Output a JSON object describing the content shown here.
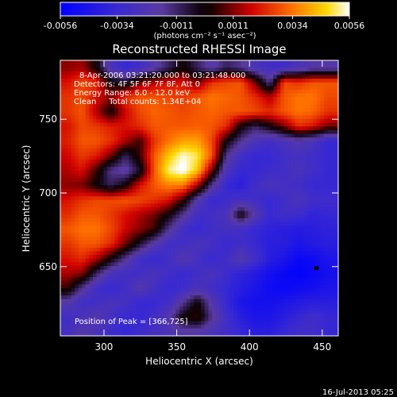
{
  "colorbar": {
    "ticks": [
      -0.0056,
      -0.0034,
      -0.0011,
      0.0011,
      0.0034,
      0.0056
    ],
    "tick_labels": [
      "-0.0056",
      "-0.0034",
      "-0.0011",
      "0.0011",
      "0.0034",
      "0.0056"
    ],
    "units": "(photons cm⁻² s⁻¹ asec⁻²)"
  },
  "annotations": {
    "time_range": "8-Apr-2006 03:21:20.000 to 03:21:48.000",
    "detectors": "Detectors: 4F 5F 6F 7F 8F, Att 0",
    "energy": "Energy Range: 6.0 - 12.0 keV",
    "clean": "Clean     Total counts: 1.34E+04",
    "peak": "Position of Peak = [366,725]"
  },
  "footer": {
    "date": "16-Jul-2013 05:25"
  },
  "chart_data": {
    "type": "heatmap",
    "title": "Reconstructed RHESSI Image",
    "xlabel": "Heliocentric X (arcsec)",
    "ylabel": "Heliocentric Y (arcsec)",
    "xlim": [
      270,
      461
    ],
    "ylim": [
      603,
      790
    ],
    "xticks": [
      300,
      350,
      400,
      450
    ],
    "yticks": [
      650,
      700,
      750
    ],
    "clim": [
      -0.0056,
      0.0056
    ],
    "colormap": "blue-purple-black-red-orange-yellow-white",
    "peak": {
      "x": 366,
      "y": 725
    },
    "marker": {
      "x": 446,
      "y": 649
    },
    "grid_x": [
      275,
      285,
      295,
      305,
      315,
      325,
      335,
      345,
      355,
      365,
      375,
      385,
      395,
      405,
      415,
      425,
      435,
      445,
      455
    ],
    "grid_y": [
      785,
      775,
      765,
      755,
      745,
      735,
      725,
      715,
      705,
      695,
      685,
      675,
      665,
      655,
      645,
      635,
      625,
      615,
      605
    ],
    "values": [
      [
        0.0012,
        0.0014,
        0.0,
        -0.0025,
        -0.0035,
        -0.003,
        -0.002,
        -0.001,
        0.0,
        -0.001,
        -0.002,
        -0.001,
        -0.0015,
        -0.0025,
        -0.003,
        -0.003,
        -0.0025,
        -0.002,
        -0.002
      ],
      [
        0.002,
        0.0028,
        0.0024,
        0.0,
        -0.0005,
        0.001,
        0.0015,
        0.002,
        0.002,
        0.001,
        0.0025,
        0.0028,
        0.003,
        0.001,
        -0.0015,
        0.0028,
        0.0025,
        0.003,
        0.003
      ],
      [
        0.0025,
        0.0028,
        0.002,
        0.0012,
        0.0025,
        0.003,
        0.003,
        0.0028,
        0.0026,
        0.003,
        0.0034,
        0.0032,
        0.003,
        0.0024,
        0.0015,
        0.003,
        0.0034,
        0.0034,
        0.0028
      ],
      [
        0.0025,
        0.003,
        0.0015,
        0.0,
        0.0018,
        0.0028,
        0.0032,
        0.003,
        0.0028,
        0.003,
        0.0032,
        0.003,
        0.003,
        0.0028,
        0.0024,
        0.003,
        0.0034,
        0.0032,
        0.0025
      ],
      [
        0.002,
        0.0028,
        0.0026,
        0.0022,
        0.002,
        0.0024,
        0.003,
        0.003,
        0.003,
        0.0031,
        0.003,
        0.0024,
        0.0,
        -0.001,
        0.0,
        0.001,
        0.0024,
        0.002,
        0.001
      ],
      [
        0.0022,
        0.003,
        0.003,
        0.0025,
        0.0015,
        0.0005,
        0.0025,
        0.0034,
        0.004,
        0.004,
        0.0028,
        0.0,
        -0.0015,
        -0.0025,
        -0.003,
        -0.0025,
        -0.002,
        -0.0025,
        -0.0035
      ],
      [
        0.0018,
        0.0026,
        0.0022,
        0.001,
        -0.001,
        0.0005,
        0.003,
        0.0045,
        0.0055,
        0.005,
        0.003,
        -0.0015,
        -0.003,
        -0.0035,
        -0.0035,
        -0.003,
        -0.0028,
        -0.003,
        -0.0035
      ],
      [
        0.0015,
        0.002,
        0.0005,
        -0.0015,
        -0.002,
        -0.0005,
        0.003,
        0.0052,
        0.0058,
        0.0045,
        0.001,
        -0.0025,
        -0.0035,
        -0.0035,
        -0.0032,
        -0.003,
        -0.0025,
        -0.003,
        -0.0035
      ],
      [
        0.0012,
        0.001,
        0.0,
        -0.001,
        0.0,
        0.002,
        0.003,
        0.0036,
        0.0035,
        0.0015,
        -0.0015,
        -0.0035,
        -0.004,
        -0.003,
        -0.0025,
        -0.0028,
        -0.003,
        -0.0035,
        -0.0035
      ],
      [
        0.002,
        0.0025,
        0.0028,
        0.0028,
        0.003,
        0.0028,
        0.0025,
        0.002,
        0.0005,
        -0.002,
        -0.0035,
        -0.0032,
        -0.0028,
        -0.003,
        -0.0035,
        -0.003,
        -0.0025,
        -0.003,
        -0.0032
      ],
      [
        0.0024,
        0.003,
        0.003,
        0.0026,
        0.002,
        0.0015,
        0.001,
        0.0,
        -0.0015,
        -0.003,
        -0.003,
        -0.0025,
        0.0,
        -0.002,
        -0.0035,
        -0.003,
        -0.0032,
        -0.0038,
        -0.0035
      ],
      [
        0.003,
        0.0034,
        0.0034,
        0.0028,
        0.0018,
        0.0012,
        0.0005,
        -0.0015,
        -0.003,
        -0.0035,
        -0.003,
        -0.0028,
        -0.003,
        -0.0035,
        -0.0038,
        -0.004,
        -0.0042,
        -0.004,
        -0.0038
      ],
      [
        0.0025,
        0.003,
        0.003,
        0.0024,
        0.001,
        -0.0005,
        -0.002,
        -0.003,
        -0.003,
        -0.0025,
        -0.0028,
        -0.0035,
        -0.003,
        -0.0035,
        -0.004,
        -0.004,
        -0.0045,
        -0.0042,
        -0.004
      ],
      [
        0.002,
        0.0024,
        0.0015,
        0.0,
        -0.0015,
        -0.003,
        -0.0035,
        -0.003,
        -0.002,
        -0.0028,
        -0.0035,
        -0.003,
        -0.002,
        -0.003,
        -0.004,
        -0.0045,
        -0.0052,
        -0.005,
        -0.0045
      ],
      [
        0.0015,
        0.0012,
        -0.001,
        -0.0025,
        -0.003,
        -0.003,
        -0.0025,
        -0.003,
        -0.0035,
        -0.003,
        -0.0025,
        -0.0032,
        -0.0038,
        -0.0042,
        -0.0048,
        -0.0052,
        -0.0055,
        -0.0052,
        -0.0048
      ],
      [
        0.0005,
        -0.0015,
        -0.003,
        -0.0035,
        -0.003,
        -0.002,
        -0.0028,
        -0.0035,
        -0.0032,
        -0.0025,
        -0.003,
        -0.0035,
        -0.004,
        -0.0045,
        -0.005,
        -0.0052,
        -0.005,
        -0.0048,
        -0.0045
      ],
      [
        -0.002,
        -0.003,
        -0.003,
        -0.0025,
        -0.0028,
        -0.0035,
        -0.0035,
        -0.003,
        -0.0015,
        0.0,
        -0.002,
        -0.0035,
        -0.0045,
        -0.0048,
        -0.0048,
        -0.0045,
        -0.0042,
        -0.004,
        -0.004
      ],
      [
        -0.003,
        -0.0025,
        -0.002,
        -0.0028,
        -0.0035,
        -0.0035,
        -0.003,
        -0.002,
        0.0,
        0.0005,
        -0.0015,
        -0.003,
        -0.004,
        -0.0045,
        -0.0045,
        -0.004,
        -0.0035,
        -0.003,
        -0.0035
      ],
      [
        -0.0028,
        -0.002,
        -0.0025,
        -0.0032,
        -0.0035,
        -0.0032,
        -0.0028,
        -0.0025,
        -0.002,
        -0.002,
        -0.0025,
        -0.003,
        -0.0035,
        -0.004,
        -0.004,
        -0.0035,
        -0.003,
        -0.003,
        -0.0035
      ]
    ]
  }
}
